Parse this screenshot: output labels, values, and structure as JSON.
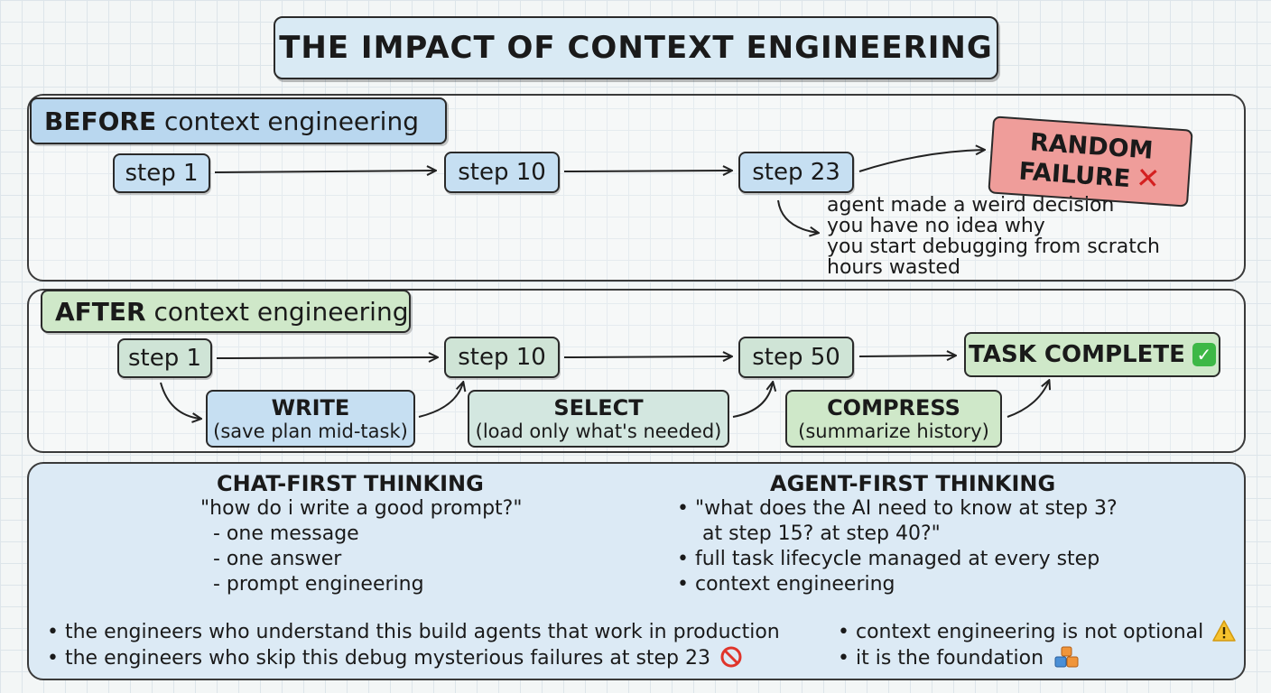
{
  "title": "THE IMPACT OF CONTEXT ENGINEERING",
  "before": {
    "label_bold": "BEFORE",
    "label_rest": "context engineering",
    "steps": [
      "step 1",
      "step 10",
      "step 23"
    ],
    "failure_line1": "RANDOM",
    "failure_line2": "FAILURE",
    "notes": [
      "agent made a weird decision",
      "you have no idea why",
      "you start debugging from scratch",
      "hours wasted"
    ]
  },
  "after": {
    "label_bold": "AFTER",
    "label_rest": "context engineering",
    "steps": [
      "step 1",
      "step 10",
      "step 50"
    ],
    "task": "TASK COMPLETE",
    "techniques": [
      {
        "name": "WRITE",
        "desc": "(save plan mid-task)",
        "color": "#c6dff2"
      },
      {
        "name": "SELECT",
        "desc": "(load only what's needed)",
        "color": "#d3e7e0"
      },
      {
        "name": "COMPRESS",
        "desc": "(summarize history)",
        "color": "#cfe8c9"
      }
    ]
  },
  "comparison": {
    "chat": {
      "heading": "CHAT-FIRST THINKING",
      "lines": [
        "\"how do i write a good prompt?\"",
        "  - one message",
        "  - one answer",
        "  - prompt engineering"
      ]
    },
    "agent": {
      "heading": "AGENT-FIRST THINKING",
      "lines": [
        "• \"what does the AI need to know at step 3?",
        "    at step 15? at step 40?\"",
        "• full task lifecycle managed at every step",
        "• context engineering"
      ]
    },
    "bottom_left": [
      "• the engineers who understand this build agents that work in production",
      "• the engineers who skip this debug mysterious failures at step 23"
    ],
    "bottom_right": [
      "• context engineering is not optional",
      "• it is the foundation"
    ]
  },
  "icons": {
    "failure": "x-mark-icon",
    "task": "check-mark-icon",
    "no_entry": "no-entry-icon",
    "warning": "warning-icon",
    "foundation": "blocks-icon"
  },
  "colors": {
    "before_label": "#b9d7ef",
    "after_label": "#cfe8c9",
    "failure": "#ef9d9a",
    "success": "#3db846",
    "comparison_panel": "#dceaf5"
  }
}
